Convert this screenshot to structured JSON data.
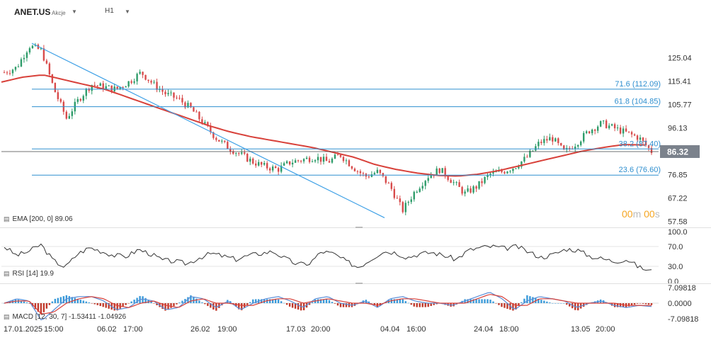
{
  "header": {
    "symbol": "ANET.US",
    "asset_type": "Akcje",
    "timeframe": "H1"
  },
  "price_axis": {
    "ticks": [
      "125.04",
      "115.41",
      "105.77",
      "96.13",
      "86.32",
      "76.85",
      "67.22",
      "57.58"
    ],
    "current": "86.32"
  },
  "countdown": {
    "m": "00",
    "m_unit": "m",
    "s": "00",
    "s_unit": "s"
  },
  "chart_data": [
    {
      "type": "candlestick",
      "y_ticks": [
        125.04,
        115.41,
        105.77,
        96.13,
        76.85,
        67.22,
        57.58
      ],
      "ylim": [
        56.5,
        132.5
      ],
      "current_price": 86.32,
      "x_labels": [
        "17.01.2025",
        "15:00",
        "06.02",
        "17:00",
        "26.02",
        "19:00",
        "17.03",
        "20:00",
        "04.04",
        "16:00",
        "24.04",
        "18:00",
        "13.05",
        "20:00"
      ],
      "approx_close_path": [
        119,
        121,
        130,
        128,
        112,
        100,
        108,
        114,
        113,
        112,
        115,
        119,
        114,
        110,
        108,
        104,
        98,
        92,
        88,
        85,
        82,
        80,
        79,
        82,
        83,
        84,
        82,
        85,
        80,
        76,
        78,
        72,
        62,
        70,
        76,
        79,
        74,
        69,
        72,
        77,
        78,
        80,
        84,
        90,
        92,
        86,
        90,
        95,
        98,
        96,
        94,
        92,
        86.32
      ],
      "fibonacci_levels": [
        {
          "level": "71.6",
          "value": "112.09"
        },
        {
          "level": "61.8",
          "value": "104.85"
        },
        {
          "level": "38.2",
          "value": "87.40"
        },
        {
          "level": "23.6",
          "value": "76.60"
        }
      ],
      "ema_line": {
        "name": "EMA",
        "period_label": "[200, 0]",
        "value": "89.06"
      },
      "trendline": {
        "from": [
          "17.01.2025",
          131
        ],
        "to": [
          "04.04",
          59
        ]
      }
    },
    {
      "type": "line",
      "name": "RSI",
      "param_label": "[14]",
      "value": "19.9",
      "y_ticks": [
        "100.0",
        "70.0",
        "30.0",
        "0.0"
      ],
      "ylim": [
        0,
        100
      ],
      "levels": [
        70,
        30
      ],
      "approx_values": [
        70,
        52,
        60,
        74,
        42,
        28,
        55,
        68,
        60,
        52,
        50,
        64,
        55,
        42,
        40,
        35,
        48,
        56,
        50,
        44,
        52,
        56,
        60,
        46,
        34,
        36,
        60,
        55,
        40,
        28,
        44,
        60,
        58,
        48,
        55,
        58,
        52,
        44,
        62,
        68,
        70,
        66,
        70,
        58,
        48,
        54,
        65,
        62,
        50,
        45,
        40,
        44,
        28,
        20
      ]
    },
    {
      "type": "line",
      "name": "MACD",
      "param_label": "[12, 30, 7]",
      "value_macd": "-1.53411",
      "value_signal": "-1.04926",
      "y_ticks": [
        "7.09818",
        "0.0000",
        "-7.09818"
      ],
      "ylim": [
        -9,
        9
      ],
      "approx_macd": [
        0,
        2,
        1,
        -8,
        -3,
        2,
        3,
        3,
        1,
        -3,
        -2,
        2,
        1,
        -3,
        -2,
        3,
        2,
        -2,
        1,
        -3,
        0,
        2,
        3,
        1,
        -2,
        2,
        3,
        0,
        -1,
        1,
        -2,
        2,
        3,
        1,
        0,
        0,
        -1,
        1,
        3,
        5,
        2,
        -3,
        1,
        3,
        2,
        1,
        -2,
        0,
        1,
        -1,
        -2,
        -1,
        -1.53
      ],
      "approx_signal": [
        0,
        1,
        1,
        -5,
        -4,
        0,
        2,
        3,
        2,
        -1,
        -2,
        0,
        1,
        -1,
        -2,
        1,
        2,
        0,
        0,
        -1,
        -1,
        1,
        2,
        2,
        0,
        1,
        2,
        1,
        0,
        0,
        -1,
        1,
        2,
        2,
        1,
        0,
        0,
        0,
        2,
        4,
        3,
        -1,
        -1,
        2,
        2,
        1,
        0,
        0,
        0,
        0,
        -1,
        -1,
        -1.05
      ]
    }
  ],
  "colors": {
    "bull": "#2e9c6a",
    "bear": "#d84b4b",
    "ema": "#d8413a",
    "fib": "#2f8fcf",
    "trend": "#3ea0e6",
    "indicator": "#333333",
    "macd": "#5b8dd6",
    "signal": "#d8413a",
    "current_tag": "#7b828c"
  }
}
